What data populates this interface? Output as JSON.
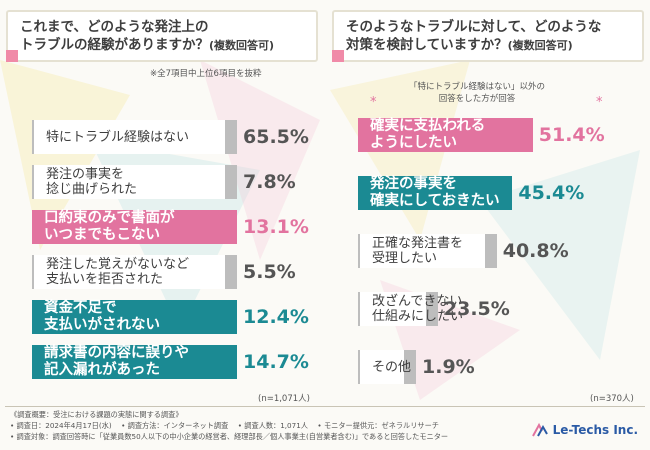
{
  "left_question": {
    "line1": "これまで、どのような発注上の",
    "line2": "トラブルの経験がありますか？",
    "tag": "(複数回答可)"
  },
  "right_question": {
    "line1": "そのようなトラブルに対して、どのような",
    "line2": "対策を検討していますか？",
    "tag": "(複数回答可)"
  },
  "left_note": "※全7項目中上位6項目を抜粋",
  "right_note": {
    "line1": "「特にトラブル経験はない」以外の",
    "line2": "回答をした方が回答",
    "mark": "*"
  },
  "left_n": "(n=1,071人)",
  "right_n": "(n=370人)",
  "colors": {
    "pink": "#e2739f",
    "teal": "#1b8a93",
    "grey": "#bdbdbd",
    "value_grey": "#555555"
  },
  "chart_data": [
    {
      "type": "bar",
      "orientation": "horizontal",
      "title": "これまで、どのような発注上のトラブルの経験がありますか？(複数回答可)",
      "unit": "%",
      "categories": [
        "特にトラブル経験はない",
        "発注の事実を\n捻じ曲げられた",
        "口約束のみで書面が\nいつまでもこない",
        "発注した覚えがないなど\n支払いを拒否された",
        "資金不足で\n支払いがされない",
        "請求書の内容に誤りや\n記入漏れがあった"
      ],
      "values": [
        65.5,
        7.8,
        13.1,
        5.5,
        12.4,
        14.7
      ],
      "value_labels": [
        "65.5%",
        "7.8%",
        "13.1%",
        "5.5%",
        "12.4%",
        "14.7%"
      ],
      "highlight": [
        "none",
        "none",
        "pink",
        "none",
        "teal",
        "teal"
      ],
      "n": "n=1,071人"
    },
    {
      "type": "bar",
      "orientation": "horizontal",
      "title": "そのようなトラブルに対して、どのような対策を検討していますか？(複数回答可)",
      "unit": "%",
      "categories": [
        "確実に支払われる\nようにしたい",
        "発注の事実を\n確実にしておきたい",
        "正確な発注書を\n受理したい",
        "改ざんできない\n仕組みにしたい",
        "その他"
      ],
      "values": [
        51.4,
        45.4,
        40.8,
        23.5,
        1.9
      ],
      "value_labels": [
        "51.4%",
        "45.4%",
        "40.8%",
        "23.5%",
        "1.9%"
      ],
      "highlight": [
        "pink",
        "teal",
        "none",
        "none",
        "none"
      ],
      "n": "n=370人"
    }
  ],
  "footer": {
    "overview": "《調査概要：受注における課題の実態に関する調査》",
    "line1": "• 調査日：2024年4月17日(水)　 • 調査方法：インターネット調査　 • 調査人数：1,071人　 • モニター提供元：ゼネラルリサーチ",
    "line2": "• 調査対象：調査回答時に「従業員数50人以下の中小企業の経営者、経理部長／個人事業主(自営業者含む)」であると回答したモニター"
  },
  "logo": {
    "text": "Le-Techs Inc.",
    "icon": "le-techs-logo-icon"
  }
}
